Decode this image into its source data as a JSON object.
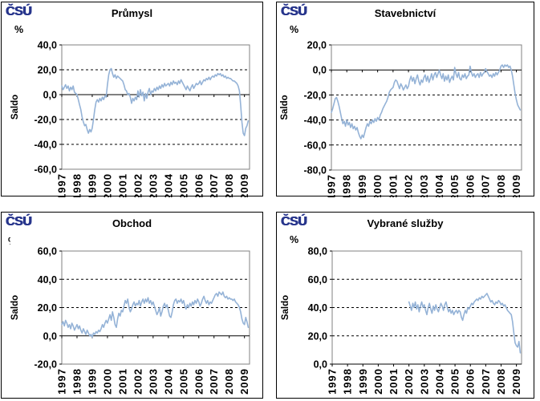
{
  "page": {
    "background": "#ffffff"
  },
  "logo": {
    "text": "ČSÚ",
    "color": "#27358C"
  },
  "style": {
    "line_color": "#95B3D7",
    "grid_color": "#000000",
    "plot_border_color": "#808080",
    "panel_border_color": "#000000"
  },
  "chart_data": [
    {
      "type": "line",
      "title": "Průmysl",
      "unit_label": "%",
      "unit_label_clipped": false,
      "ylabel": "Saldo",
      "xlabel": "",
      "legend": "none",
      "grid": "horizontal-dashed",
      "ymin": -60,
      "ymax": 40,
      "ytick_values": [
        40,
        20,
        0,
        -20,
        -40,
        -60
      ],
      "ytick_labels": [
        "40,0",
        "20,0",
        "0,0",
        "-20,0",
        "-40,0",
        "-60,0"
      ],
      "xtick_years": [
        1997,
        1998,
        1999,
        2000,
        2001,
        2002,
        2003,
        2004,
        2005,
        2006,
        2007,
        2008,
        2009
      ],
      "xtick_labels": [
        "1997",
        "1998",
        "1999",
        "2000",
        "2001",
        "2002",
        "2003",
        "2004",
        "2005",
        "2006",
        "2007",
        "2008",
        "2009"
      ],
      "x_range": [
        1997,
        2009.3333
      ],
      "series": [
        {
          "name": "saldo",
          "start_year": 1997,
          "interval_months": 1,
          "values": [
            7,
            4,
            6,
            8,
            5,
            7,
            3,
            6,
            4,
            7,
            2,
            1,
            0,
            -4,
            -8,
            -12,
            -18,
            -22,
            -25,
            -24,
            -28,
            -31,
            -28,
            -30,
            -27,
            -20,
            -12,
            -6,
            -4,
            -6,
            -3,
            -5,
            -2,
            -4,
            -1,
            -2,
            8,
            16,
            20,
            21,
            17,
            14,
            16,
            13,
            15,
            14,
            13,
            12,
            11,
            8,
            4,
            3,
            0,
            1,
            -2,
            -7,
            -3,
            -5,
            -2,
            -4,
            3,
            -2,
            4,
            -1,
            2,
            -5,
            1,
            -3,
            2,
            5,
            0,
            3,
            2,
            5,
            3,
            6,
            4,
            7,
            5,
            8,
            6,
            9,
            7,
            8,
            9,
            7,
            10,
            8,
            11,
            9,
            10,
            8,
            11,
            9,
            12,
            10,
            8,
            6,
            4,
            7,
            5,
            3,
            6,
            8,
            5,
            7,
            9,
            8,
            9,
            11,
            8,
            10,
            12,
            11,
            13,
            12,
            14,
            12,
            14,
            15,
            14,
            16,
            15,
            17,
            16,
            17,
            15,
            16,
            14,
            15,
            13,
            14,
            13,
            13,
            12,
            11,
            11,
            10,
            9,
            7,
            3,
            -8,
            -22,
            -31,
            -33,
            -27,
            -25,
            -21
          ]
        }
      ]
    },
    {
      "type": "line",
      "title": "Stavebnictví",
      "unit_label": "%",
      "unit_label_clipped": false,
      "ylabel": "Saldo",
      "xlabel": "",
      "legend": "none",
      "grid": "horizontal-dashed",
      "ymin": -80,
      "ymax": 20,
      "ytick_values": [
        20,
        0,
        -20,
        -40,
        -60,
        -80
      ],
      "ytick_labels": [
        "20,0",
        "0,0",
        "-20,0",
        "-40,0",
        "-60,0",
        "-80,0"
      ],
      "xtick_years": [
        1997,
        1998,
        1999,
        2000,
        2001,
        2002,
        2003,
        2004,
        2005,
        2006,
        2007,
        2008,
        2009
      ],
      "xtick_labels": [
        "1997",
        "1998",
        "1999",
        "2000",
        "2001",
        "2002",
        "2003",
        "2004",
        "2005",
        "2006",
        "2007",
        "2008",
        "2009"
      ],
      "x_range": [
        1997,
        2009.3333
      ],
      "series": [
        {
          "name": "saldo",
          "start_year": 1997,
          "interval_months": 1,
          "values": [
            -34,
            -31,
            -27,
            -23,
            -22,
            -25,
            -29,
            -34,
            -39,
            -43,
            -41,
            -45,
            -40,
            -44,
            -42,
            -46,
            -43,
            -47,
            -45,
            -48,
            -46,
            -50,
            -53,
            -55,
            -52,
            -54,
            -50,
            -46,
            -43,
            -45,
            -41,
            -43,
            -40,
            -42,
            -39,
            -41,
            -38,
            -40,
            -36,
            -34,
            -31,
            -29,
            -27,
            -25,
            -22,
            -18,
            -16,
            -15,
            -14,
            -10,
            -8,
            -9,
            -12,
            -15,
            -11,
            -13,
            -16,
            -14,
            -12,
            -15,
            -13,
            -8,
            -5,
            -9,
            -6,
            -11,
            -7,
            -4,
            -9,
            -12,
            -8,
            -10,
            -6,
            -4,
            -9,
            -5,
            -10,
            -7,
            -3,
            -8,
            -4,
            -2,
            -6,
            -3,
            0,
            -4,
            -7,
            -3,
            -9,
            -5,
            -8,
            -4,
            -10,
            -7,
            -5,
            -8,
            2,
            -3,
            -6,
            -2,
            -7,
            -8,
            -4,
            -6,
            -3,
            -7,
            -5,
            -4,
            3,
            -2,
            -5,
            -3,
            -6,
            -4,
            -3,
            -6,
            -2,
            -5,
            -3,
            -2,
            1,
            -1,
            -3,
            -5,
            -4,
            -6,
            -3,
            -5,
            -2,
            -4,
            -2,
            0,
            3,
            4,
            2,
            4,
            3,
            4,
            2,
            3,
            0,
            -5,
            -12,
            -19,
            -24,
            -28,
            -30,
            -32
          ]
        }
      ]
    },
    {
      "type": "line",
      "title": "Obchod",
      "unit_label": "%",
      "unit_label_clipped": true,
      "ylabel": "Saldo",
      "xlabel": "",
      "legend": "none",
      "grid": "horizontal-dashed",
      "ymin": -20,
      "ymax": 60,
      "ytick_values": [
        60,
        40,
        20,
        0,
        -20
      ],
      "ytick_labels": [
        "60,0",
        "40,0",
        "20,0",
        "0,0",
        "-20,0"
      ],
      "xtick_years": [
        1997,
        1998,
        1999,
        2000,
        2001,
        2002,
        2003,
        2004,
        2005,
        2006,
        2007,
        2008,
        2009
      ],
      "xtick_labels": [
        "1997",
        "1998",
        "1999",
        "2000",
        "2001",
        "2002",
        "2003",
        "2004",
        "2005",
        "2006",
        "2007",
        "2008",
        "2009"
      ],
      "x_range": [
        1997,
        2009.3333
      ],
      "series": [
        {
          "name": "saldo",
          "start_year": 1997,
          "interval_months": 1,
          "values": [
            8,
            10,
            7,
            11,
            9,
            6,
            8,
            5,
            9,
            7,
            4,
            6,
            8,
            5,
            7,
            4,
            2,
            5,
            3,
            1,
            4,
            2,
            0,
            1,
            -1,
            2,
            1,
            3,
            2,
            4,
            3,
            5,
            8,
            6,
            9,
            11,
            9,
            12,
            15,
            11,
            17,
            13,
            8,
            6,
            12,
            16,
            14,
            18,
            17,
            21,
            25,
            23,
            26,
            20,
            17,
            19,
            22,
            24,
            21,
            23,
            22,
            25,
            21,
            24,
            26,
            23,
            26,
            24,
            27,
            23,
            25,
            22,
            24,
            21,
            18,
            15,
            17,
            20,
            14,
            17,
            21,
            23,
            20,
            22,
            18,
            14,
            13,
            17,
            22,
            25,
            26,
            23,
            25,
            24,
            26,
            23,
            25,
            21,
            19,
            22,
            20,
            23,
            21,
            24,
            22,
            25,
            23,
            26,
            24,
            21,
            23,
            26,
            28,
            25,
            23,
            25,
            22,
            24,
            23,
            25,
            27,
            29,
            30,
            28,
            31,
            30,
            29,
            31,
            28,
            27,
            28,
            26,
            27,
            26,
            26,
            25,
            26,
            24,
            23,
            22,
            20,
            17,
            12,
            9,
            8,
            13,
            10,
            6
          ]
        }
      ]
    },
    {
      "type": "line",
      "title": "Vybrané služby",
      "unit_label": "%",
      "unit_label_clipped": false,
      "ylabel": "Saldo",
      "xlabel": "",
      "legend": "none",
      "grid": "horizontal-dashed",
      "ymin": 0,
      "ymax": 80,
      "ytick_values": [
        80,
        60,
        40,
        20,
        0
      ],
      "ytick_labels": [
        "80,0",
        "60,0",
        "40,0",
        "20,0",
        "0,0"
      ],
      "xtick_years": [
        1997,
        1998,
        1999,
        2000,
        2001,
        2002,
        2003,
        2004,
        2005,
        2006,
        2007,
        2008,
        2009
      ],
      "xtick_labels": [
        "1997",
        "1998",
        "1999",
        "2000",
        "2001",
        "2002",
        "2003",
        "2004",
        "2005",
        "2006",
        "2007",
        "2008",
        "2009"
      ],
      "x_range": [
        1997,
        2009.3333
      ],
      "series": [
        {
          "name": "saldo",
          "start_year": 2002,
          "interval_months": 1,
          "values": [
            44,
            41,
            38,
            43,
            40,
            44,
            39,
            42,
            37,
            41,
            44,
            40,
            42,
            38,
            35,
            40,
            43,
            39,
            36,
            41,
            38,
            42,
            39,
            37,
            40,
            43,
            41,
            38,
            42,
            44,
            40,
            37,
            39,
            36,
            38,
            35,
            37,
            38,
            36,
            38,
            37,
            33,
            31,
            35,
            38,
            36,
            40,
            39,
            41,
            43,
            42,
            44,
            45,
            46,
            45,
            47,
            46,
            48,
            47,
            48,
            49,
            50,
            48,
            46,
            44,
            45,
            43,
            42,
            44,
            43,
            45,
            44,
            42,
            43,
            41,
            42,
            40,
            38,
            37,
            36,
            35,
            30,
            22,
            15,
            13,
            12,
            16,
            8
          ]
        }
      ]
    }
  ]
}
